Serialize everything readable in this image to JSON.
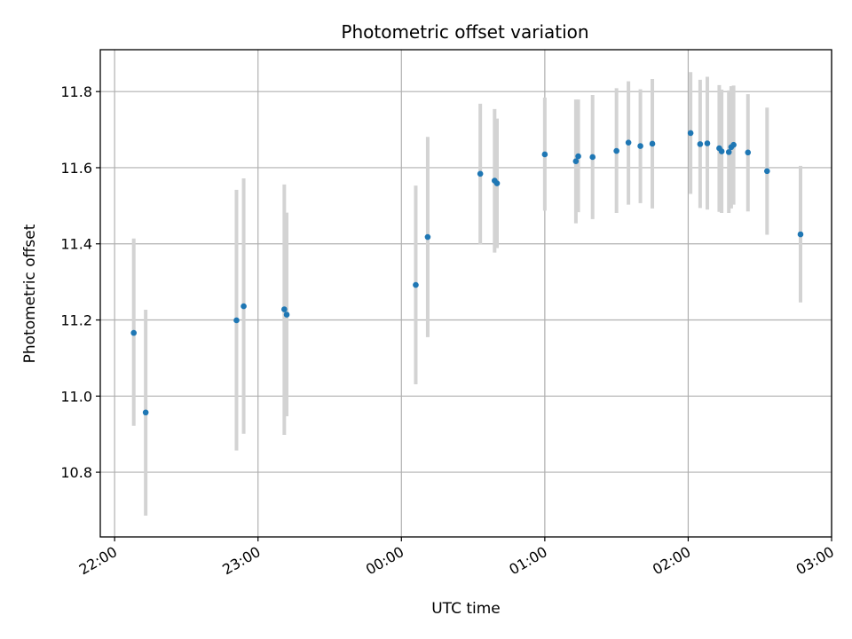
{
  "chart_data": {
    "type": "scatter",
    "title": "Photometric offset variation",
    "xlabel": "UTC time",
    "ylabel": "Photometric offset",
    "x_ticks": [
      "22:00",
      "23:00",
      "00:00",
      "01:00",
      "02:00",
      "03:00"
    ],
    "y_ticks": [
      "10.8",
      "11.0",
      "11.2",
      "11.4",
      "11.6",
      "11.8"
    ],
    "xlim": [
      "21:54",
      "03:00"
    ],
    "ylim": [
      10.63,
      11.91
    ],
    "grid": true,
    "colors": {
      "points": "#1f77b4",
      "error_bars": "#d3d3d3",
      "grid": "#b0b0b0"
    },
    "series": [
      {
        "points": [
          {
            "x": "22:08",
            "y": 11.166,
            "ylow": 10.922,
            "yhigh": 11.414
          },
          {
            "x": "22:13",
            "y": 10.957,
            "ylow": 10.686,
            "yhigh": 11.227
          },
          {
            "x": "22:51",
            "y": 11.199,
            "ylow": 10.857,
            "yhigh": 11.542
          },
          {
            "x": "22:54",
            "y": 11.236,
            "ylow": 10.901,
            "yhigh": 11.572
          },
          {
            "x": "23:11",
            "y": 11.228,
            "ylow": 10.898,
            "yhigh": 11.556
          },
          {
            "x": "23:12",
            "y": 11.214,
            "ylow": 10.947,
            "yhigh": 11.482
          },
          {
            "x": "00:06",
            "y": 11.292,
            "ylow": 11.031,
            "yhigh": 11.553
          },
          {
            "x": "00:11",
            "y": 11.418,
            "ylow": 11.155,
            "yhigh": 11.681
          },
          {
            "x": "00:33",
            "y": 11.584,
            "ylow": 11.399,
            "yhigh": 11.768
          },
          {
            "x": "00:39",
            "y": 11.566,
            "ylow": 11.377,
            "yhigh": 11.754
          },
          {
            "x": "00:40",
            "y": 11.559,
            "ylow": 11.389,
            "yhigh": 11.729
          },
          {
            "x": "01:00",
            "y": 11.635,
            "ylow": 11.487,
            "yhigh": 11.784
          },
          {
            "x": "01:13",
            "y": 11.617,
            "ylow": 11.454,
            "yhigh": 11.779
          },
          {
            "x": "01:14",
            "y": 11.63,
            "ylow": 11.483,
            "yhigh": 11.779
          },
          {
            "x": "01:20",
            "y": 11.628,
            "ylow": 11.465,
            "yhigh": 11.791
          },
          {
            "x": "01:30",
            "y": 11.644,
            "ylow": 11.481,
            "yhigh": 11.809
          },
          {
            "x": "01:35",
            "y": 11.666,
            "ylow": 11.503,
            "yhigh": 11.827
          },
          {
            "x": "01:40",
            "y": 11.657,
            "ylow": 11.507,
            "yhigh": 11.806
          },
          {
            "x": "01:45",
            "y": 11.663,
            "ylow": 11.493,
            "yhigh": 11.833
          },
          {
            "x": "02:01",
            "y": 11.691,
            "ylow": 11.531,
            "yhigh": 11.851
          },
          {
            "x": "02:05",
            "y": 11.662,
            "ylow": 11.494,
            "yhigh": 11.831
          },
          {
            "x": "02:08",
            "y": 11.664,
            "ylow": 11.49,
            "yhigh": 11.839
          },
          {
            "x": "02:13",
            "y": 11.651,
            "ylow": 11.484,
            "yhigh": 11.817
          },
          {
            "x": "02:14",
            "y": 11.643,
            "ylow": 11.481,
            "yhigh": 11.805
          },
          {
            "x": "02:17",
            "y": 11.641,
            "ylow": 11.481,
            "yhigh": 11.803
          },
          {
            "x": "02:18",
            "y": 11.654,
            "ylow": 11.493,
            "yhigh": 11.814
          },
          {
            "x": "02:19",
            "y": 11.66,
            "ylow": 11.503,
            "yhigh": 11.816
          },
          {
            "x": "02:25",
            "y": 11.64,
            "ylow": 11.485,
            "yhigh": 11.793
          },
          {
            "x": "02:33",
            "y": 11.591,
            "ylow": 11.424,
            "yhigh": 11.758
          },
          {
            "x": "02:47",
            "y": 11.425,
            "ylow": 11.246,
            "yhigh": 11.605
          }
        ]
      }
    ]
  }
}
